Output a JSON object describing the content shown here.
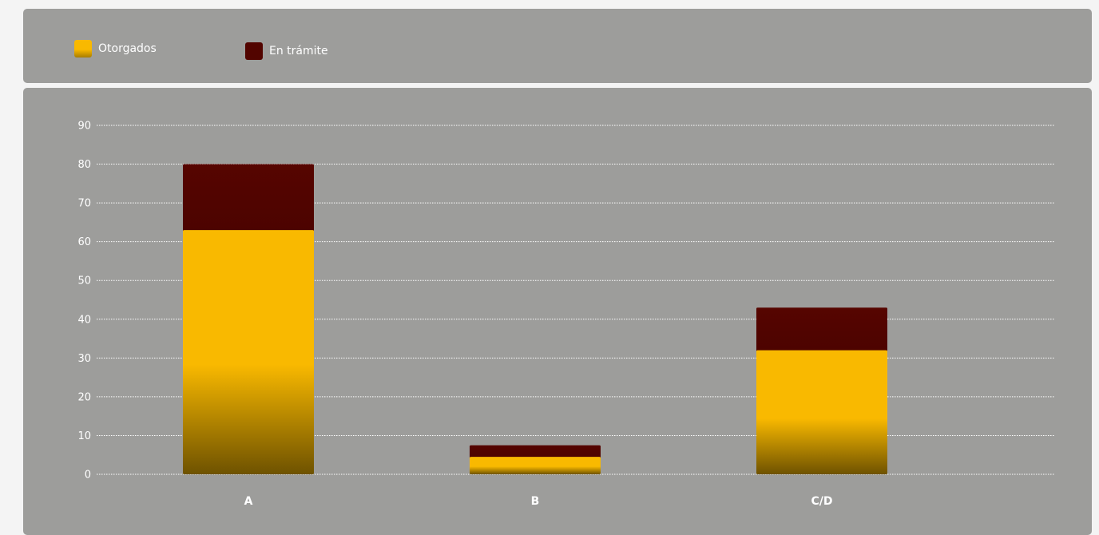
{
  "legend": {
    "items": [
      {
        "label": "Otorgados",
        "color": "#f9b900"
      },
      {
        "label": "En trámite",
        "color": "#520400"
      }
    ]
  },
  "colors": {
    "panel_background": "#9d9d9b",
    "page_background": "#f4f4f4",
    "gridline": "#ffffff",
    "text": "#ffffff",
    "otorgados_top": "#f9b900",
    "otorgados_bottom": "#6e5200",
    "en_tramite": "#520400"
  },
  "chart_data": {
    "type": "bar",
    "stacked": true,
    "categories": [
      "A",
      "B",
      "C/D"
    ],
    "series": [
      {
        "name": "Otorgados",
        "values": [
          63,
          4.5,
          32
        ]
      },
      {
        "name": "En trámite",
        "values": [
          17,
          3,
          11
        ]
      }
    ],
    "title": "",
    "xlabel": "",
    "ylabel": "",
    "ylim": [
      0,
      90
    ],
    "yticks": [
      0,
      10,
      20,
      30,
      40,
      50,
      60,
      70,
      80,
      90
    ],
    "grid": true,
    "legend_position": "top-left"
  }
}
